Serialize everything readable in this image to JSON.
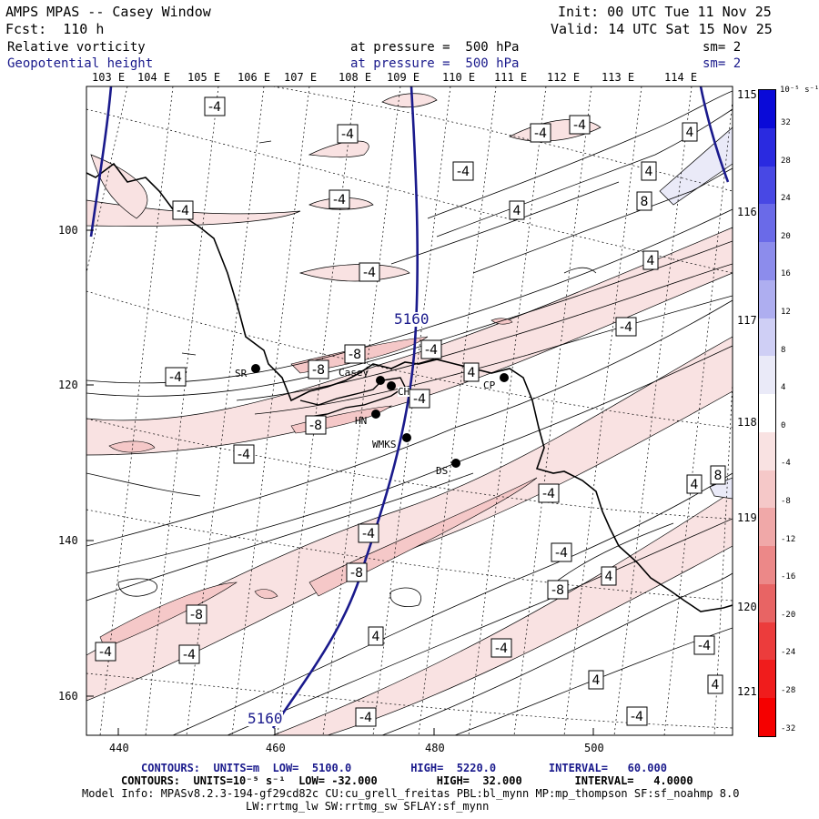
{
  "header": {
    "title": "AMPS MPAS -- Casey Window",
    "forecast": "Fcst:  110 h",
    "init": "Init: 00 UTC Tue 11 Nov 25",
    "valid": "Valid: 14 UTC Sat 15 Nov 25",
    "field1_name": "Relative vorticity",
    "field1_level": "at pressure =  500 hPa",
    "field1_smooth": "sm= 2",
    "field2_name": "Geopotential height",
    "field2_level": "at pressure =  500 hPa",
    "field2_smooth": "sm= 2"
  },
  "map": {
    "top_lon_labels": [
      "103 E",
      "104 E",
      "105 E",
      "106 E",
      "107 E",
      "108 E",
      "109 E",
      "110 E",
      "111 E",
      "112 E",
      "113 E",
      "114 E"
    ],
    "right_lon_labels": [
      "115 E",
      "116 E",
      "117 E",
      "118 E",
      "119 E",
      "120 E",
      "121 E"
    ],
    "x_ticks": [
      "440",
      "460",
      "480",
      "500"
    ],
    "y_ticks": [
      "100",
      "120",
      "140",
      "160"
    ],
    "height_contour_label": "5160",
    "stations": [
      {
        "name": "SR"
      },
      {
        "name": "Casey"
      },
      {
        "name": "CH"
      },
      {
        "name": "HN"
      },
      {
        "name": "WMKS"
      },
      {
        "name": "DS"
      },
      {
        "name": "CP"
      }
    ],
    "vorticity_labels": [
      "-4",
      "-8",
      "4",
      "8"
    ]
  },
  "colorbar": {
    "units": "10⁻⁵ s⁻¹",
    "ticks": [
      "32",
      "28",
      "24",
      "20",
      "16",
      "12",
      "8",
      "4",
      "0",
      "-4",
      "-8",
      "-12",
      "-16",
      "-20",
      "-24",
      "-28",
      "-32"
    ],
    "colors": [
      "#0a0ad8",
      "#2a2ae0",
      "#4848e4",
      "#6a6ae8",
      "#8c8cec",
      "#aeaef0",
      "#cfcff5",
      "#eaeaf8",
      "#ffffff",
      "#f9e2e2",
      "#f5c8c8",
      "#f0a8a8",
      "#ec8888",
      "#e86464",
      "#ec3c3c",
      "#f01c1c",
      "#f50000"
    ]
  },
  "footer": {
    "line1": "CONTOURS:  UNITS=m  LOW=  5100.0         HIGH=  5220.0        INTERVAL=   60.000",
    "line2": "CONTOURS:  UNITS=10⁻⁵ s⁻¹  LOW= -32.000         HIGH=  32.000        INTERVAL=   4.0000",
    "line3": "Model Info: MPASv8.2.3-194-gf29cd82c CU:cu_grell_freitas PBL:bl_mynn MP:mp_thompson SF:sf_noahmp 8.0",
    "line4": "LW:rrtmg_lw SW:rrtmg_sw SFLAY:sf_mynn"
  }
}
